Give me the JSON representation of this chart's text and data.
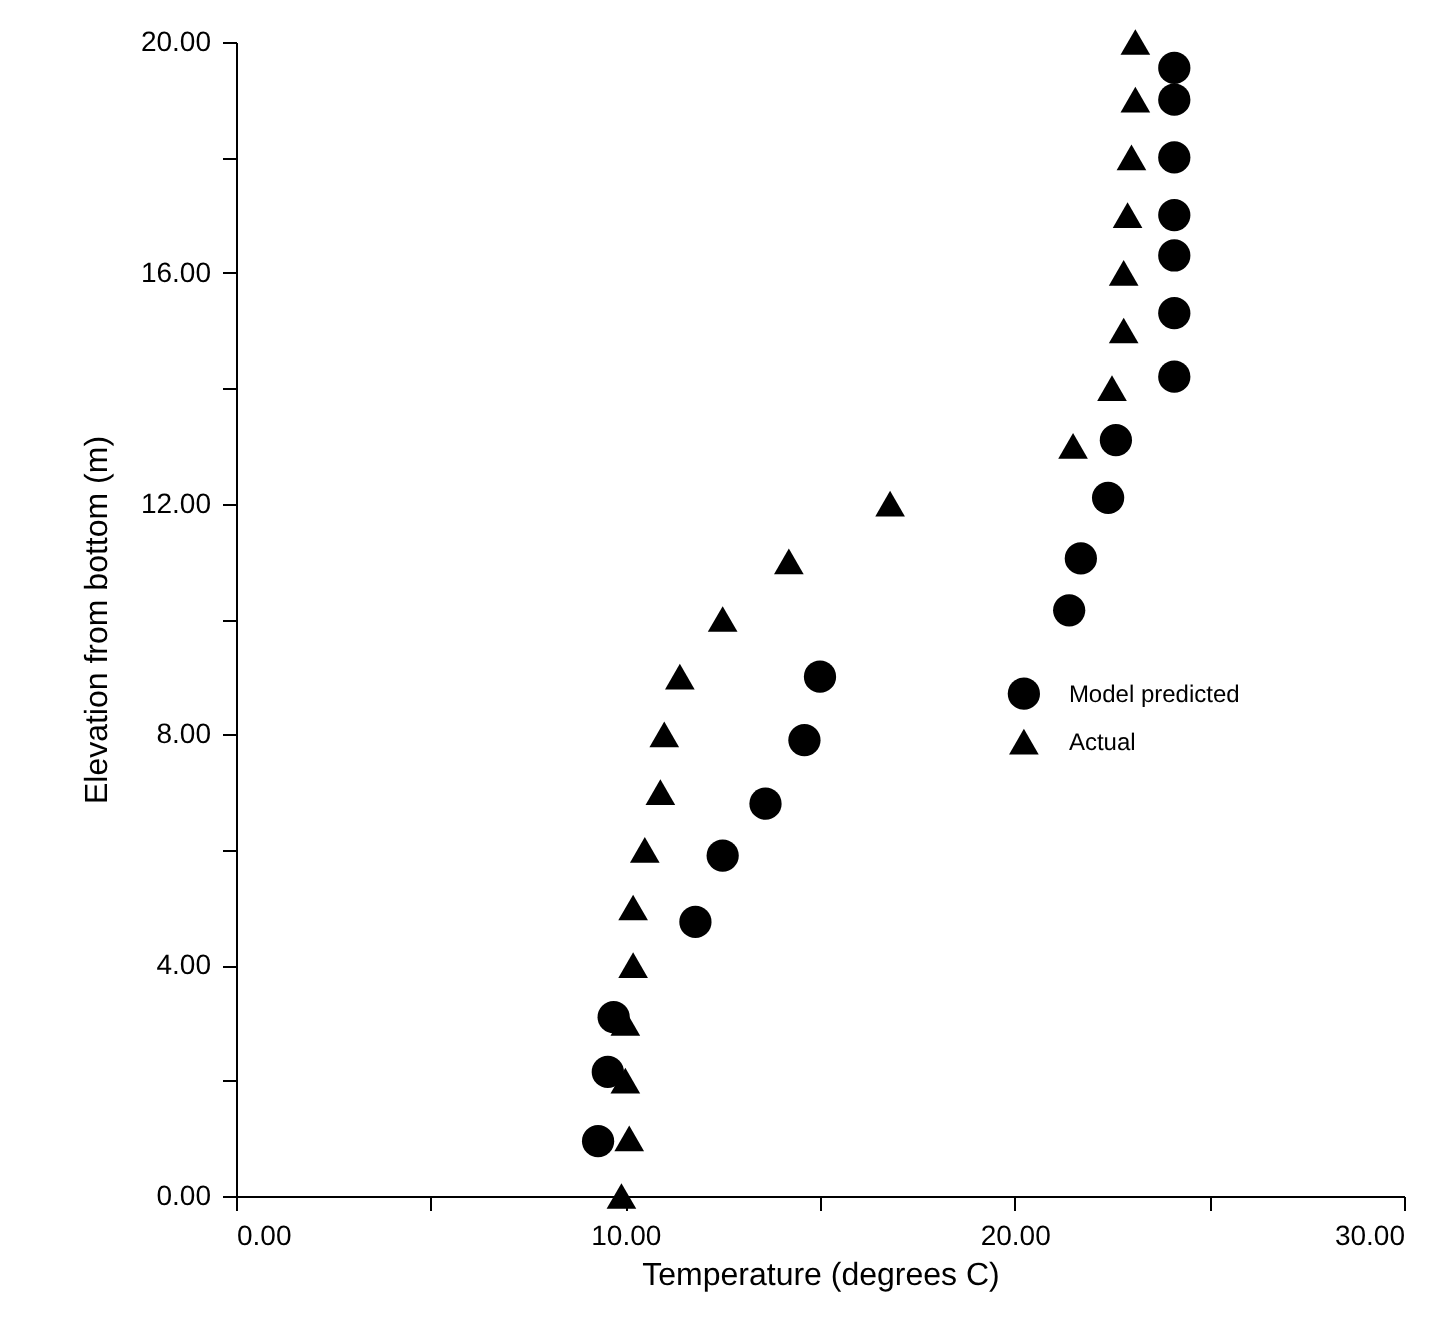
{
  "chart_data": {
    "type": "scatter",
    "xlabel": "Temperature (degrees C)",
    "ylabel": "Elevation from bottom (m)",
    "xlim": [
      0,
      30
    ],
    "ylim": [
      0,
      20
    ],
    "xticks": [
      {
        "value": 0,
        "label": "0.00"
      },
      {
        "value": 5,
        "label": null
      },
      {
        "value": 10,
        "label": "10.00"
      },
      {
        "value": 15,
        "label": null
      },
      {
        "value": 20,
        "label": "20.00"
      },
      {
        "value": 25,
        "label": null
      },
      {
        "value": 30,
        "label": "30.00"
      }
    ],
    "yticks": [
      {
        "value": 0,
        "label": "0.00"
      },
      {
        "value": 2,
        "label": null
      },
      {
        "value": 4,
        "label": "4.00"
      },
      {
        "value": 6,
        "label": null
      },
      {
        "value": 8,
        "label": "8.00"
      },
      {
        "value": 10,
        "label": null
      },
      {
        "value": 12,
        "label": "12.00"
      },
      {
        "value": 14,
        "label": null
      },
      {
        "value": 16,
        "label": "16.00"
      },
      {
        "value": 18,
        "label": null
      },
      {
        "value": 20,
        "label": "20.00"
      }
    ],
    "grid": false,
    "legend": "right",
    "series": [
      {
        "name": "Model predicted",
        "color": "#000000",
        "marker": "circle",
        "x": [
          9.3,
          9.55,
          9.7,
          11.8,
          12.5,
          13.6,
          14.6,
          15.0,
          21.4,
          21.7,
          22.4,
          22.6,
          24.1,
          24.1,
          24.1,
          24.1,
          24.1,
          24.1,
          24.1
        ],
        "values": [
          0.95,
          2.15,
          3.1,
          4.75,
          5.9,
          6.8,
          7.9,
          9.0,
          10.15,
          11.05,
          12.1,
          13.1,
          14.2,
          15.3,
          16.3,
          17.0,
          18.0,
          19.0,
          19.55
        ]
      },
      {
        "name": "Actual",
        "color": "#000000",
        "marker": "triangle",
        "x": [
          9.9,
          10.1,
          10.0,
          10.0,
          10.2,
          10.2,
          10.5,
          10.9,
          11.0,
          11.4,
          12.5,
          14.2,
          16.8,
          21.5,
          22.5,
          22.8,
          22.8,
          22.9,
          23.0,
          23.1,
          23.1
        ],
        "values": [
          0,
          1,
          2,
          3,
          4,
          5,
          6,
          7,
          8,
          9,
          10,
          11,
          12,
          13,
          14,
          15,
          16,
          17,
          18,
          19,
          20
        ]
      }
    ]
  }
}
